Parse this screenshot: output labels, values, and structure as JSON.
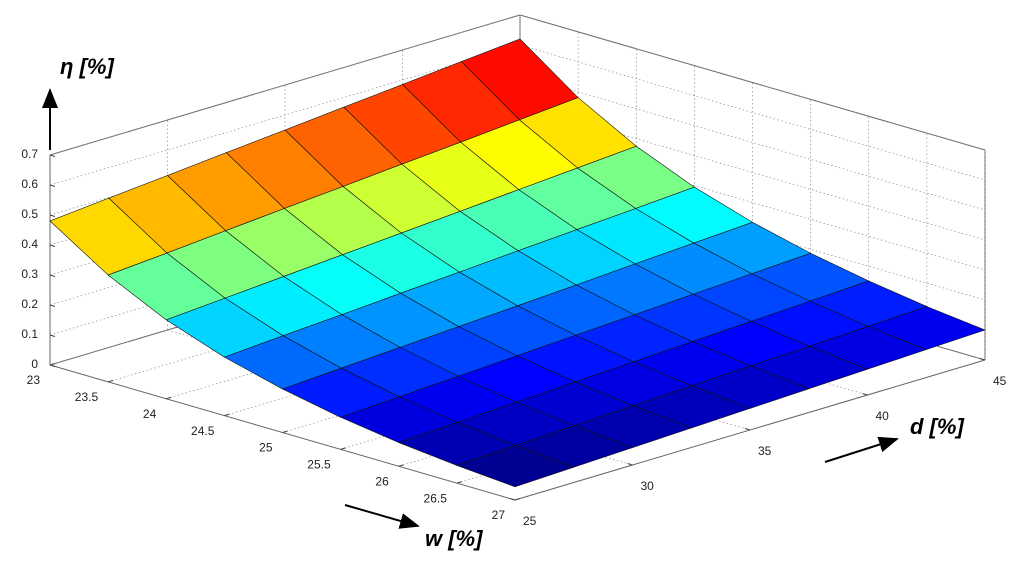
{
  "chart_data": {
    "type": "surface",
    "x_label": "w [%]",
    "y_label": "d [%]",
    "z_label": "η [%]",
    "x": [
      23,
      23.5,
      24,
      24.5,
      25,
      25.5,
      26,
      26.5,
      27
    ],
    "y": [
      25,
      27.5,
      30,
      32.5,
      35,
      37.5,
      40,
      42.5,
      45
    ],
    "z": [
      [
        0.48,
        0.498,
        0.515,
        0.533,
        0.55,
        0.568,
        0.585,
        0.603,
        0.62
      ],
      [
        0.356,
        0.371,
        0.387,
        0.403,
        0.418,
        0.434,
        0.449,
        0.465,
        0.481
      ],
      [
        0.263,
        0.277,
        0.291,
        0.305,
        0.319,
        0.333,
        0.347,
        0.361,
        0.375
      ],
      [
        0.195,
        0.208,
        0.22,
        0.233,
        0.245,
        0.258,
        0.27,
        0.282,
        0.295
      ],
      [
        0.145,
        0.156,
        0.167,
        0.178,
        0.189,
        0.2,
        0.212,
        0.223,
        0.234
      ],
      [
        0.107,
        0.117,
        0.127,
        0.137,
        0.147,
        0.157,
        0.167,
        0.177,
        0.187
      ],
      [
        0.079,
        0.088,
        0.097,
        0.106,
        0.115,
        0.124,
        0.133,
        0.142,
        0.151
      ],
      [
        0.059,
        0.067,
        0.075,
        0.083,
        0.091,
        0.099,
        0.106,
        0.114,
        0.122
      ],
      [
        0.044,
        0.051,
        0.058,
        0.065,
        0.072,
        0.079,
        0.086,
        0.093,
        0.1
      ]
    ],
    "xlim": [
      23,
      27
    ],
    "ylim": [
      25,
      45
    ],
    "zlim": [
      0,
      0.7
    ],
    "xticks": [
      23,
      23.5,
      24,
      24.5,
      25,
      25.5,
      26,
      26.5,
      27
    ],
    "yticks": [
      25,
      30,
      35,
      40,
      45
    ],
    "zticks": [
      0,
      0.1,
      0.2,
      0.3,
      0.4,
      0.5,
      0.6,
      0.7
    ],
    "colormap": "jet",
    "grid": true
  }
}
